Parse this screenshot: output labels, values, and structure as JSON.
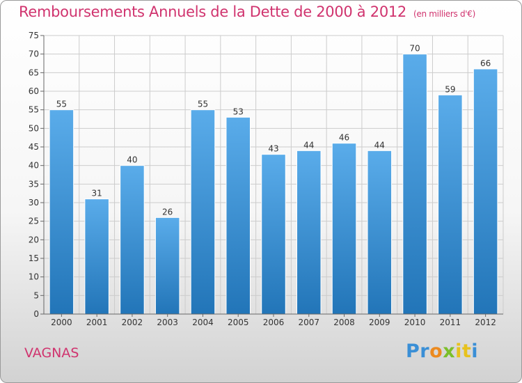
{
  "title": "Remboursements Annuels de la Dette de 2000 à 2012",
  "unit": "(en milliers d'€)",
  "place": "VAGNAS",
  "logo_text": "Proxiti",
  "colors": {
    "title": "#d0336e",
    "bar_light": "#5aacea",
    "bar_dark": "#2275b8",
    "grid": "#cccccc"
  },
  "chart_data": {
    "type": "bar",
    "title": "Remboursements Annuels de la Dette de 2000 à 2012",
    "xlabel": "",
    "ylabel": "",
    "categories": [
      "2000",
      "2001",
      "2002",
      "2003",
      "2004",
      "2005",
      "2006",
      "2007",
      "2008",
      "2009",
      "2010",
      "2011",
      "2012"
    ],
    "values": [
      55,
      31,
      40,
      26,
      55,
      53,
      43,
      44,
      46,
      44,
      70,
      59,
      66
    ],
    "ylim": [
      0,
      75
    ],
    "yticks": [
      0,
      5,
      10,
      15,
      20,
      25,
      30,
      35,
      40,
      45,
      50,
      55,
      60,
      65,
      70,
      75
    ],
    "grid": true,
    "data_labels": true
  }
}
